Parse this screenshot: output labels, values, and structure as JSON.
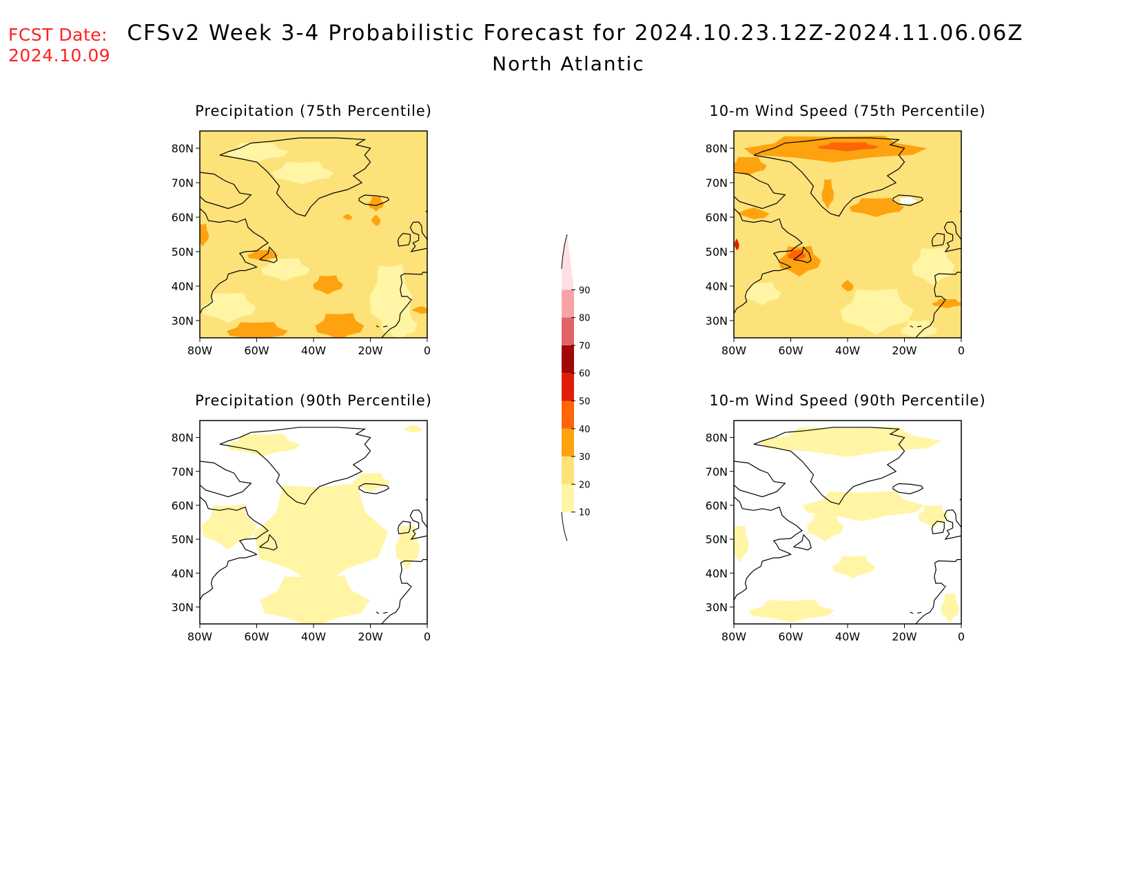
{
  "header": {
    "fcst_label": "FCST Date:",
    "fcst_date": "2024.10.09",
    "title": "CFSv2 Week 3-4 Probabilistic Forecast for 2024.10.23.12Z-2024.11.06.06Z",
    "subtitle": "North Atlantic"
  },
  "colors": {
    "land_outline": "#000000",
    "frame": "#000000",
    "background": "#ffffff"
  },
  "colorbar": {
    "levels": [
      "10",
      "20",
      "30",
      "40",
      "50",
      "60",
      "70",
      "80",
      "90"
    ],
    "bins": [
      {
        "range": [
          10,
          20
        ],
        "color": "#fff5a5"
      },
      {
        "range": [
          20,
          30
        ],
        "color": "#fde27a"
      },
      {
        "range": [
          30,
          40
        ],
        "color": "#fea30f"
      },
      {
        "range": [
          40,
          50
        ],
        "color": "#fe6508"
      },
      {
        "range": [
          50,
          60
        ],
        "color": "#e01d05"
      },
      {
        "range": [
          60,
          70
        ],
        "color": "#a10803"
      },
      {
        "range": [
          70,
          80
        ],
        "color": "#e06469"
      },
      {
        "range": [
          80,
          90
        ],
        "color": "#f6a3a8"
      },
      {
        "range": [
          90,
          100
        ],
        "color": "#fde0e2"
      }
    ]
  },
  "chart_data": [
    {
      "type": "heatmap",
      "title": "Precipitation (75th Percentile)",
      "x_ticks": [
        "80W",
        "60W",
        "40W",
        "20W",
        "0"
      ],
      "y_ticks": [
        "80N",
        "70N",
        "60N",
        "50N",
        "40N",
        "30N"
      ],
      "xlim": [
        -80,
        0
      ],
      "ylim": [
        25,
        85
      ],
      "dominant_probability_bin": "20-30",
      "patches": [
        {
          "bin": "10-20",
          "lat_lon_center": [
            35,
            -70
          ]
        },
        {
          "bin": "10-20",
          "lat_lon_center": [
            40,
            -10
          ]
        },
        {
          "bin": "10-20",
          "lat_lon_center": [
            32,
            -10
          ]
        },
        {
          "bin": "10-20",
          "lat_lon_center": [
            73,
            -45
          ]
        },
        {
          "bin": "30-40",
          "lat_lon_center": [
            40,
            -35
          ]
        },
        {
          "bin": "30-40",
          "lat_lon_center": [
            28,
            -30
          ]
        },
        {
          "bin": "30-40",
          "lat_lon_center": [
            28,
            -60
          ]
        },
        {
          "bin": "30-40",
          "lat_lon_center": [
            64,
            -17
          ]
        },
        {
          "bin": "30-40",
          "lat_lon_center": [
            49,
            -60
          ]
        }
      ]
    },
    {
      "type": "heatmap",
      "title": "10-m Wind Speed (75th Percentile)",
      "x_ticks": [
        "80W",
        "60W",
        "40W",
        "20W",
        "0"
      ],
      "y_ticks": [
        "80N",
        "70N",
        "60N",
        "50N",
        "40N",
        "30N"
      ],
      "xlim": [
        -80,
        0
      ],
      "ylim": [
        25,
        85
      ],
      "dominant_probability_bin": "20-30",
      "patches": [
        {
          "bin": "30-40",
          "lat_lon_center": [
            80,
            -40
          ]
        },
        {
          "bin": "30-40",
          "lat_lon_center": [
            63,
            -30
          ]
        },
        {
          "bin": "30-40",
          "lat_lon_center": [
            48,
            -57
          ]
        },
        {
          "bin": "40-50",
          "lat_lon_center": [
            80,
            -40
          ]
        },
        {
          "bin": "10-20",
          "lat_lon_center": [
            35,
            -30
          ]
        },
        {
          "bin": "10-20",
          "lat_lon_center": [
            45,
            -10
          ]
        },
        {
          "bin": "10-20",
          "lat_lon_center": [
            72,
            -50
          ]
        }
      ]
    },
    {
      "type": "heatmap",
      "title": "Precipitation (90th Percentile)",
      "x_ticks": [
        "80W",
        "60W",
        "40W",
        "20W",
        "0"
      ],
      "y_ticks": [
        "80N",
        "70N",
        "60N",
        "50N",
        "40N",
        "30N"
      ],
      "xlim": [
        -80,
        0
      ],
      "ylim": [
        25,
        85
      ],
      "dominant_probability_bin": "below 10",
      "patches": [
        {
          "bin": "10-20",
          "lat_lon_center": [
            45,
            -35
          ]
        },
        {
          "bin": "10-20",
          "lat_lon_center": [
            60,
            -30
          ]
        },
        {
          "bin": "10-20",
          "lat_lon_center": [
            30,
            -45
          ]
        },
        {
          "bin": "10-20",
          "lat_lon_center": [
            55,
            -70
          ]
        },
        {
          "bin": "10-20",
          "lat_lon_center": [
            78,
            -55
          ]
        }
      ]
    },
    {
      "type": "heatmap",
      "title": "10-m Wind Speed (90th Percentile)",
      "x_ticks": [
        "80W",
        "60W",
        "40W",
        "20W",
        "0"
      ],
      "y_ticks": [
        "80N",
        "70N",
        "60N",
        "50N",
        "40N",
        "30N"
      ],
      "xlim": [
        -80,
        0
      ],
      "ylim": [
        25,
        85
      ],
      "dominant_probability_bin": "below 10",
      "patches": [
        {
          "bin": "10-20",
          "lat_lon_center": [
            80,
            -40
          ]
        },
        {
          "bin": "10-20",
          "lat_lon_center": [
            60,
            -30
          ]
        },
        {
          "bin": "10-20",
          "lat_lon_center": [
            42,
            -38
          ]
        },
        {
          "bin": "10-20",
          "lat_lon_center": [
            30,
            -60
          ]
        },
        {
          "bin": "10-20",
          "lat_lon_center": [
            30,
            -5
          ]
        }
      ]
    }
  ]
}
